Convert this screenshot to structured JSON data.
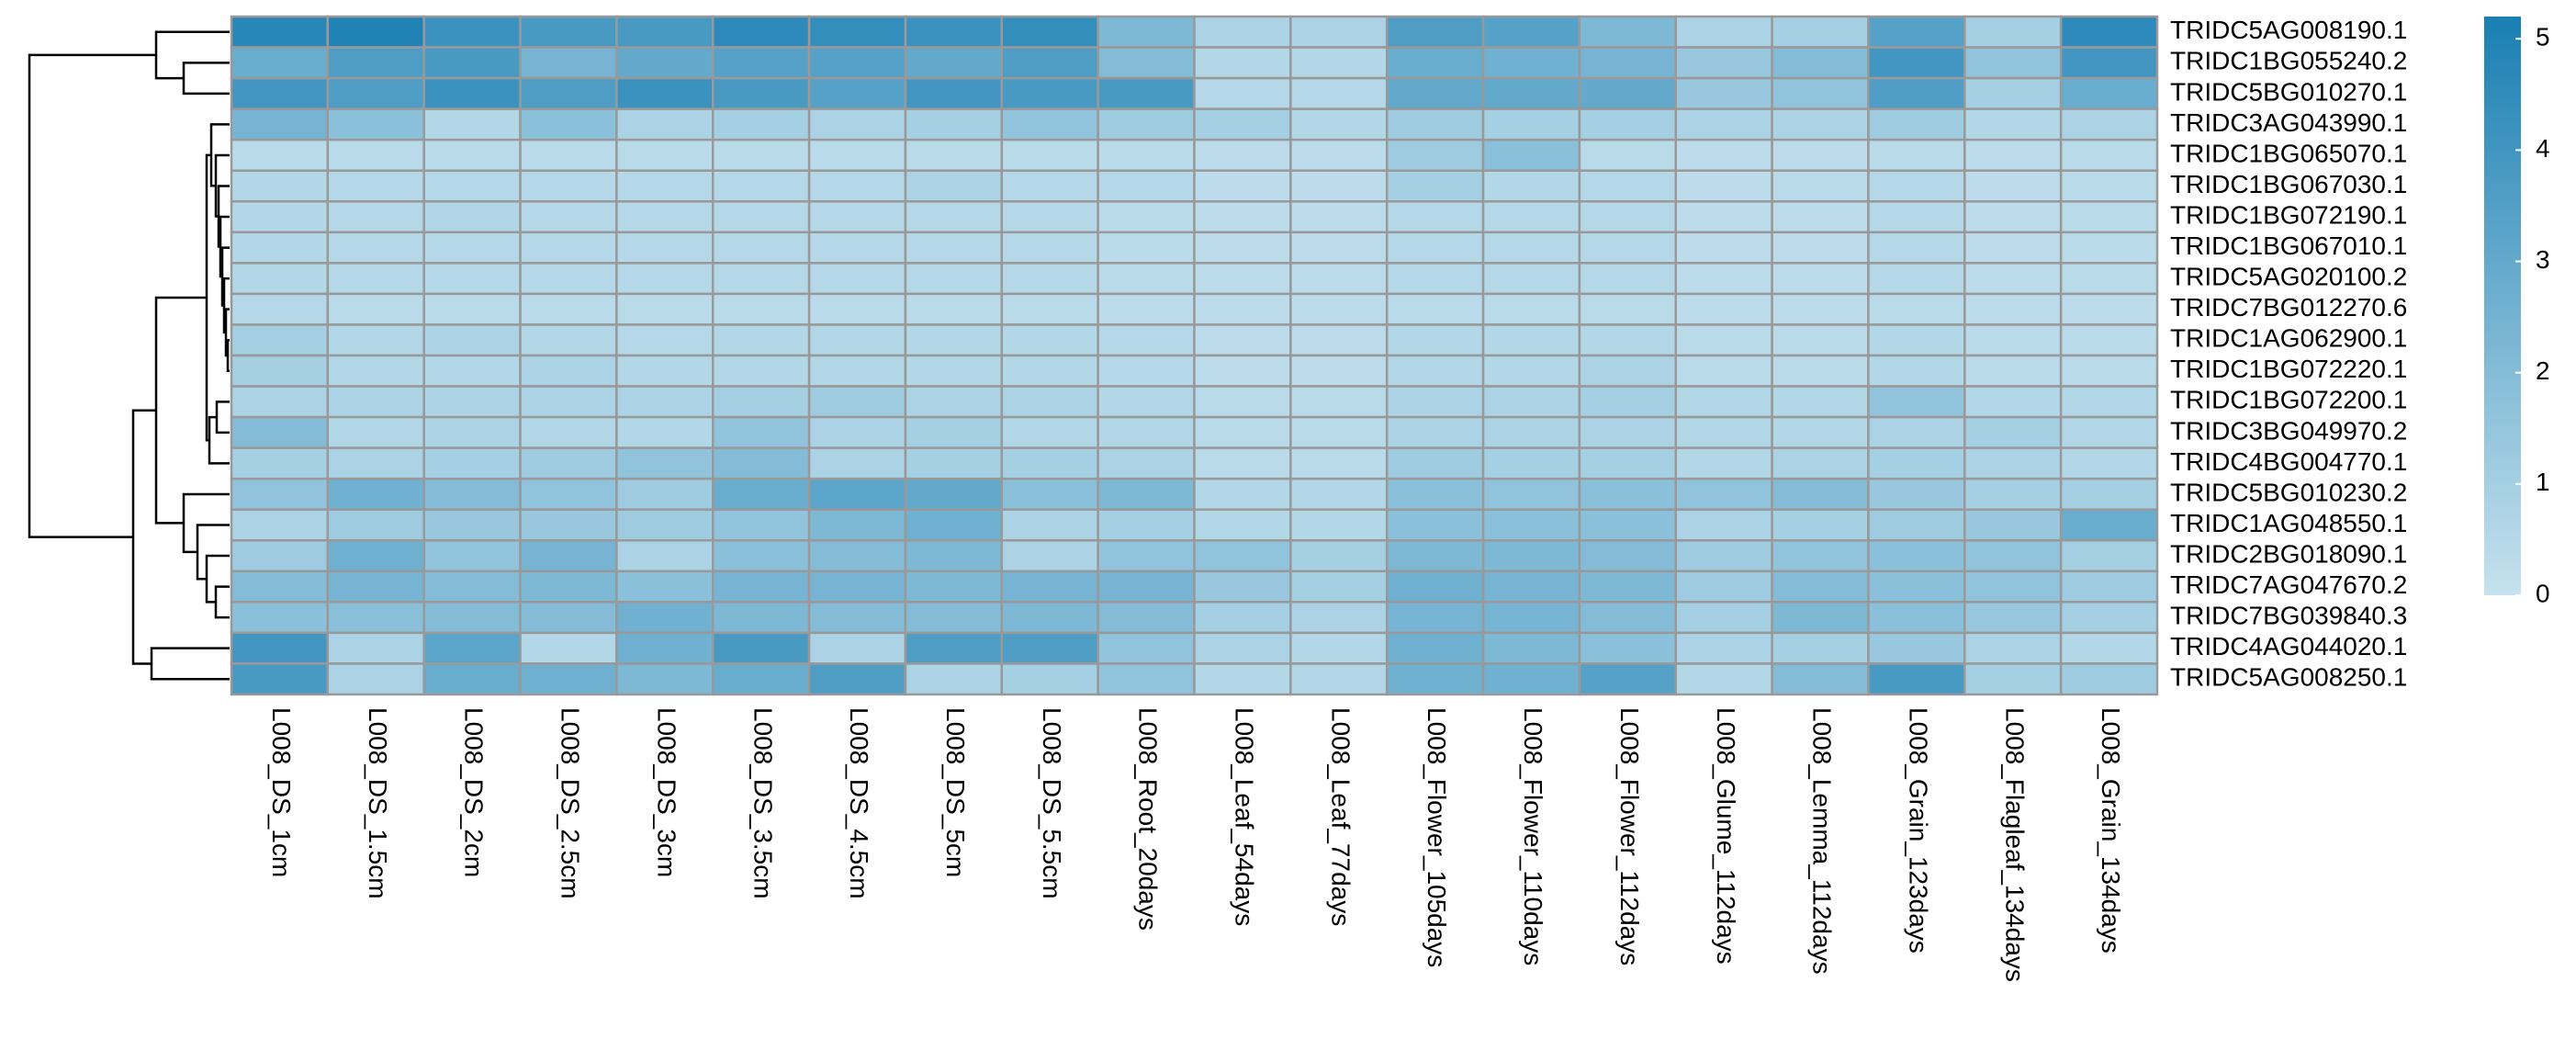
{
  "chart_data": {
    "type": "heatmap",
    "columns": [
      "L008_DS_1cm",
      "L008_DS_1.5cm",
      "L008_DS_2cm",
      "L008_DS_2.5cm",
      "L008_DS_3cm",
      "L008_DS_3.5cm",
      "L008_DS_4.5cm",
      "L008_DS_5cm",
      "L008_DS_5.5cm",
      "L008_Root_20days",
      "L008_Leaf_54days",
      "L008_Leaf_77days",
      "L008_Flower_105days",
      "L008_Flower_110days",
      "L008_Flower_112days",
      "L008_Glume_112days",
      "L008_Lemma_112days",
      "L008_Grain_123days",
      "L008_Flagleaf_134days",
      "L008_Grain_134days"
    ],
    "rows": [
      "TRIDC5AG008190.1",
      "TRIDC1BG055240.2",
      "TRIDC5BG010270.1",
      "TRIDC3AG043990.1",
      "TRIDC1BG065070.1",
      "TRIDC1BG067030.1",
      "TRIDC1BG072190.1",
      "TRIDC1BG067010.1",
      "TRIDC5AG020100.2",
      "TRIDC7BG012270.6",
      "TRIDC1AG062900.1",
      "TRIDC1BG072220.1",
      "TRIDC1BG072200.1",
      "TRIDC3BG049970.2",
      "TRIDC4BG004770.1",
      "TRIDC5BG010230.2",
      "TRIDC1AG048550.1",
      "TRIDC2BG018090.1",
      "TRIDC7AG047670.2",
      "TRIDC7BG039840.3",
      "TRIDC4AG044020.1",
      "TRIDC5AG008250.1"
    ],
    "values": [
      [
        4.8,
        5.0,
        4.2,
        3.8,
        3.8,
        4.6,
        4.4,
        4.2,
        4.4,
        2.2,
        0.8,
        0.8,
        3.6,
        3.4,
        2.2,
        0.8,
        1.0,
        3.4,
        1.0,
        4.6
      ],
      [
        2.8,
        3.6,
        3.8,
        2.4,
        3.0,
        3.4,
        3.4,
        3.0,
        3.6,
        2.0,
        0.6,
        0.6,
        2.8,
        2.6,
        2.4,
        1.4,
        2.0,
        4.0,
        1.6,
        4.0
      ],
      [
        4.0,
        3.6,
        4.2,
        3.6,
        4.2,
        3.8,
        3.4,
        4.0,
        3.8,
        3.8,
        0.5,
        0.5,
        3.0,
        3.0,
        3.0,
        1.4,
        1.6,
        3.6,
        1.0,
        2.8
      ],
      [
        2.4,
        1.8,
        0.6,
        1.8,
        0.8,
        1.0,
        0.8,
        1.0,
        1.6,
        1.2,
        1.0,
        0.6,
        1.2,
        1.0,
        1.0,
        0.8,
        0.8,
        1.2,
        0.6,
        0.8
      ],
      [
        0.4,
        0.4,
        0.4,
        0.4,
        0.4,
        0.4,
        0.4,
        0.4,
        0.4,
        0.4,
        0.3,
        0.3,
        1.2,
        1.8,
        0.4,
        0.3,
        0.3,
        0.4,
        0.3,
        0.4
      ],
      [
        0.6,
        0.5,
        0.5,
        0.5,
        0.5,
        0.5,
        0.5,
        0.8,
        0.5,
        0.5,
        0.3,
        0.3,
        1.0,
        0.6,
        0.5,
        0.3,
        0.4,
        0.5,
        0.3,
        0.4
      ],
      [
        0.6,
        0.5,
        0.7,
        0.5,
        0.5,
        0.5,
        0.5,
        0.5,
        0.5,
        0.4,
        0.3,
        0.3,
        0.5,
        0.5,
        0.5,
        0.3,
        0.3,
        0.5,
        0.3,
        0.4
      ],
      [
        0.6,
        0.5,
        0.5,
        0.5,
        0.5,
        0.5,
        0.5,
        0.5,
        0.5,
        0.4,
        0.3,
        0.3,
        0.5,
        0.5,
        0.5,
        0.3,
        0.3,
        0.5,
        0.3,
        0.4
      ],
      [
        0.6,
        0.5,
        0.5,
        0.5,
        0.5,
        0.5,
        0.5,
        0.5,
        0.5,
        0.4,
        0.3,
        0.3,
        0.5,
        0.5,
        0.5,
        0.3,
        0.3,
        0.5,
        0.3,
        0.4
      ],
      [
        0.5,
        0.4,
        0.4,
        0.4,
        0.4,
        0.4,
        0.4,
        0.4,
        0.4,
        0.3,
        0.3,
        0.3,
        0.4,
        0.4,
        0.4,
        0.3,
        0.3,
        0.4,
        0.3,
        0.3
      ],
      [
        1.0,
        0.6,
        0.8,
        0.6,
        0.5,
        0.6,
        0.6,
        0.6,
        0.6,
        0.5,
        0.3,
        0.3,
        0.6,
        0.6,
        0.6,
        0.4,
        0.4,
        0.6,
        0.4,
        0.4
      ],
      [
        1.0,
        0.6,
        0.6,
        0.8,
        0.6,
        0.6,
        0.6,
        0.6,
        0.6,
        0.5,
        0.3,
        0.3,
        0.6,
        0.6,
        0.8,
        0.4,
        0.4,
        0.6,
        0.4,
        0.4
      ],
      [
        0.8,
        0.8,
        0.8,
        0.8,
        0.8,
        1.0,
        1.2,
        0.8,
        0.8,
        0.6,
        0.4,
        0.4,
        0.8,
        0.8,
        1.0,
        0.6,
        0.6,
        1.6,
        0.6,
        0.6
      ],
      [
        2.0,
        0.6,
        0.8,
        0.6,
        0.6,
        1.6,
        0.8,
        1.0,
        0.6,
        0.6,
        0.4,
        0.4,
        0.8,
        0.8,
        0.8,
        0.6,
        0.6,
        0.8,
        1.0,
        0.6
      ],
      [
        1.0,
        0.8,
        1.0,
        1.2,
        1.6,
        2.0,
        0.8,
        1.0,
        1.0,
        0.8,
        0.4,
        0.4,
        1.2,
        1.0,
        1.0,
        0.6,
        0.8,
        1.0,
        0.8,
        0.6
      ],
      [
        1.6,
        2.6,
        2.0,
        1.6,
        1.2,
        2.8,
        3.2,
        3.0,
        1.8,
        2.2,
        0.6,
        0.6,
        1.8,
        1.6,
        1.8,
        1.6,
        2.0,
        1.4,
        1.0,
        1.0
      ],
      [
        0.8,
        1.2,
        1.4,
        1.4,
        1.2,
        1.6,
        2.2,
        2.6,
        0.8,
        1.0,
        0.6,
        0.6,
        1.8,
        1.8,
        1.8,
        0.8,
        1.0,
        1.2,
        1.4,
        2.8
      ],
      [
        1.2,
        2.6,
        1.6,
        2.4,
        0.8,
        1.8,
        2.0,
        2.2,
        0.8,
        1.6,
        1.6,
        1.0,
        2.2,
        2.2,
        2.0,
        1.2,
        1.6,
        1.8,
        1.6,
        1.0
      ],
      [
        2.0,
        2.4,
        2.0,
        2.2,
        1.8,
        2.4,
        2.4,
        2.2,
        2.4,
        2.4,
        1.4,
        1.0,
        2.6,
        2.4,
        2.2,
        1.2,
        2.0,
        1.8,
        1.6,
        1.2
      ],
      [
        1.8,
        1.8,
        2.0,
        2.0,
        2.6,
        2.2,
        2.0,
        2.0,
        2.2,
        2.0,
        1.0,
        0.8,
        2.4,
        2.4,
        2.0,
        1.0,
        2.2,
        1.8,
        1.4,
        1.0
      ],
      [
        4.0,
        0.8,
        3.2,
        0.6,
        2.6,
        3.8,
        0.8,
        3.6,
        3.6,
        1.6,
        0.8,
        0.6,
        2.6,
        2.2,
        1.8,
        0.8,
        1.0,
        1.4,
        0.8,
        0.6
      ],
      [
        3.8,
        0.8,
        2.8,
        2.6,
        2.2,
        2.8,
        3.6,
        0.8,
        1.0,
        1.6,
        0.6,
        0.6,
        2.6,
        2.6,
        3.4,
        0.6,
        2.0,
        3.8,
        1.0,
        1.2
      ]
    ],
    "zlim": [
      0,
      5.2
    ],
    "zticks": [
      0,
      1,
      2,
      3,
      4,
      5
    ],
    "colormap": [
      "#c6e2ee",
      "#1a7fb3"
    ]
  }
}
